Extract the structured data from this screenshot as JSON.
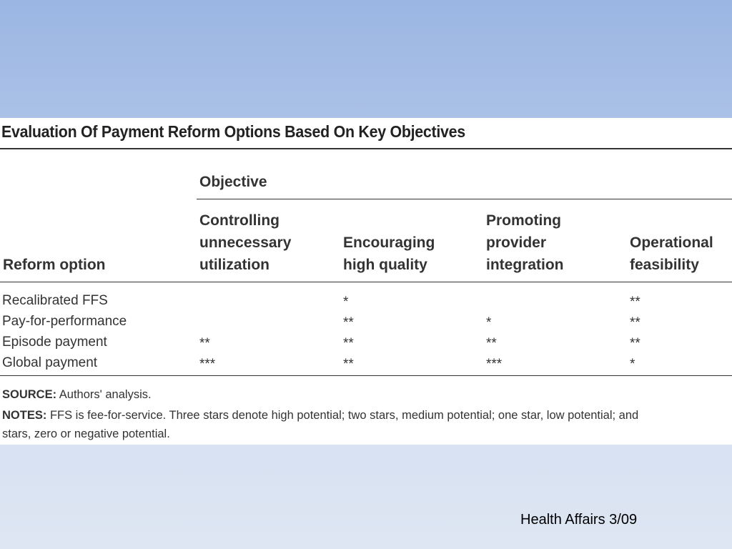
{
  "table": {
    "title": "Evaluation Of Payment Reform Options Based On Key Objectives",
    "group_header": "Objective",
    "row_header": "Reform option",
    "columns": [
      [
        "Controlling",
        "unnecessary",
        "utilization"
      ],
      [
        "Encouraging",
        "high quality"
      ],
      [
        "Promoting",
        "provider",
        "integration"
      ],
      [
        "Operational",
        "feasibility"
      ]
    ],
    "rows": [
      {
        "option": "Recalibrated FFS",
        "values": [
          "",
          "*",
          "",
          "**"
        ]
      },
      {
        "option": "Pay-for-performance",
        "values": [
          "",
          "**",
          "*",
          "**"
        ]
      },
      {
        "option": "Episode payment",
        "values": [
          "**",
          "**",
          "**",
          "**"
        ]
      },
      {
        "option": "Global payment",
        "values": [
          "***",
          "**",
          "***",
          "*"
        ]
      }
    ],
    "source_label": "SOURCE:",
    "source_text": "Authors' analysis.",
    "notes_label": "NOTES:",
    "notes_text": "FFS is fee-for-service. Three stars denote high potential; two stars, medium potential; one star, low potential; and",
    "notes_text_2": "stars, zero or negative potential."
  },
  "footer": "Health Affairs  3/09"
}
